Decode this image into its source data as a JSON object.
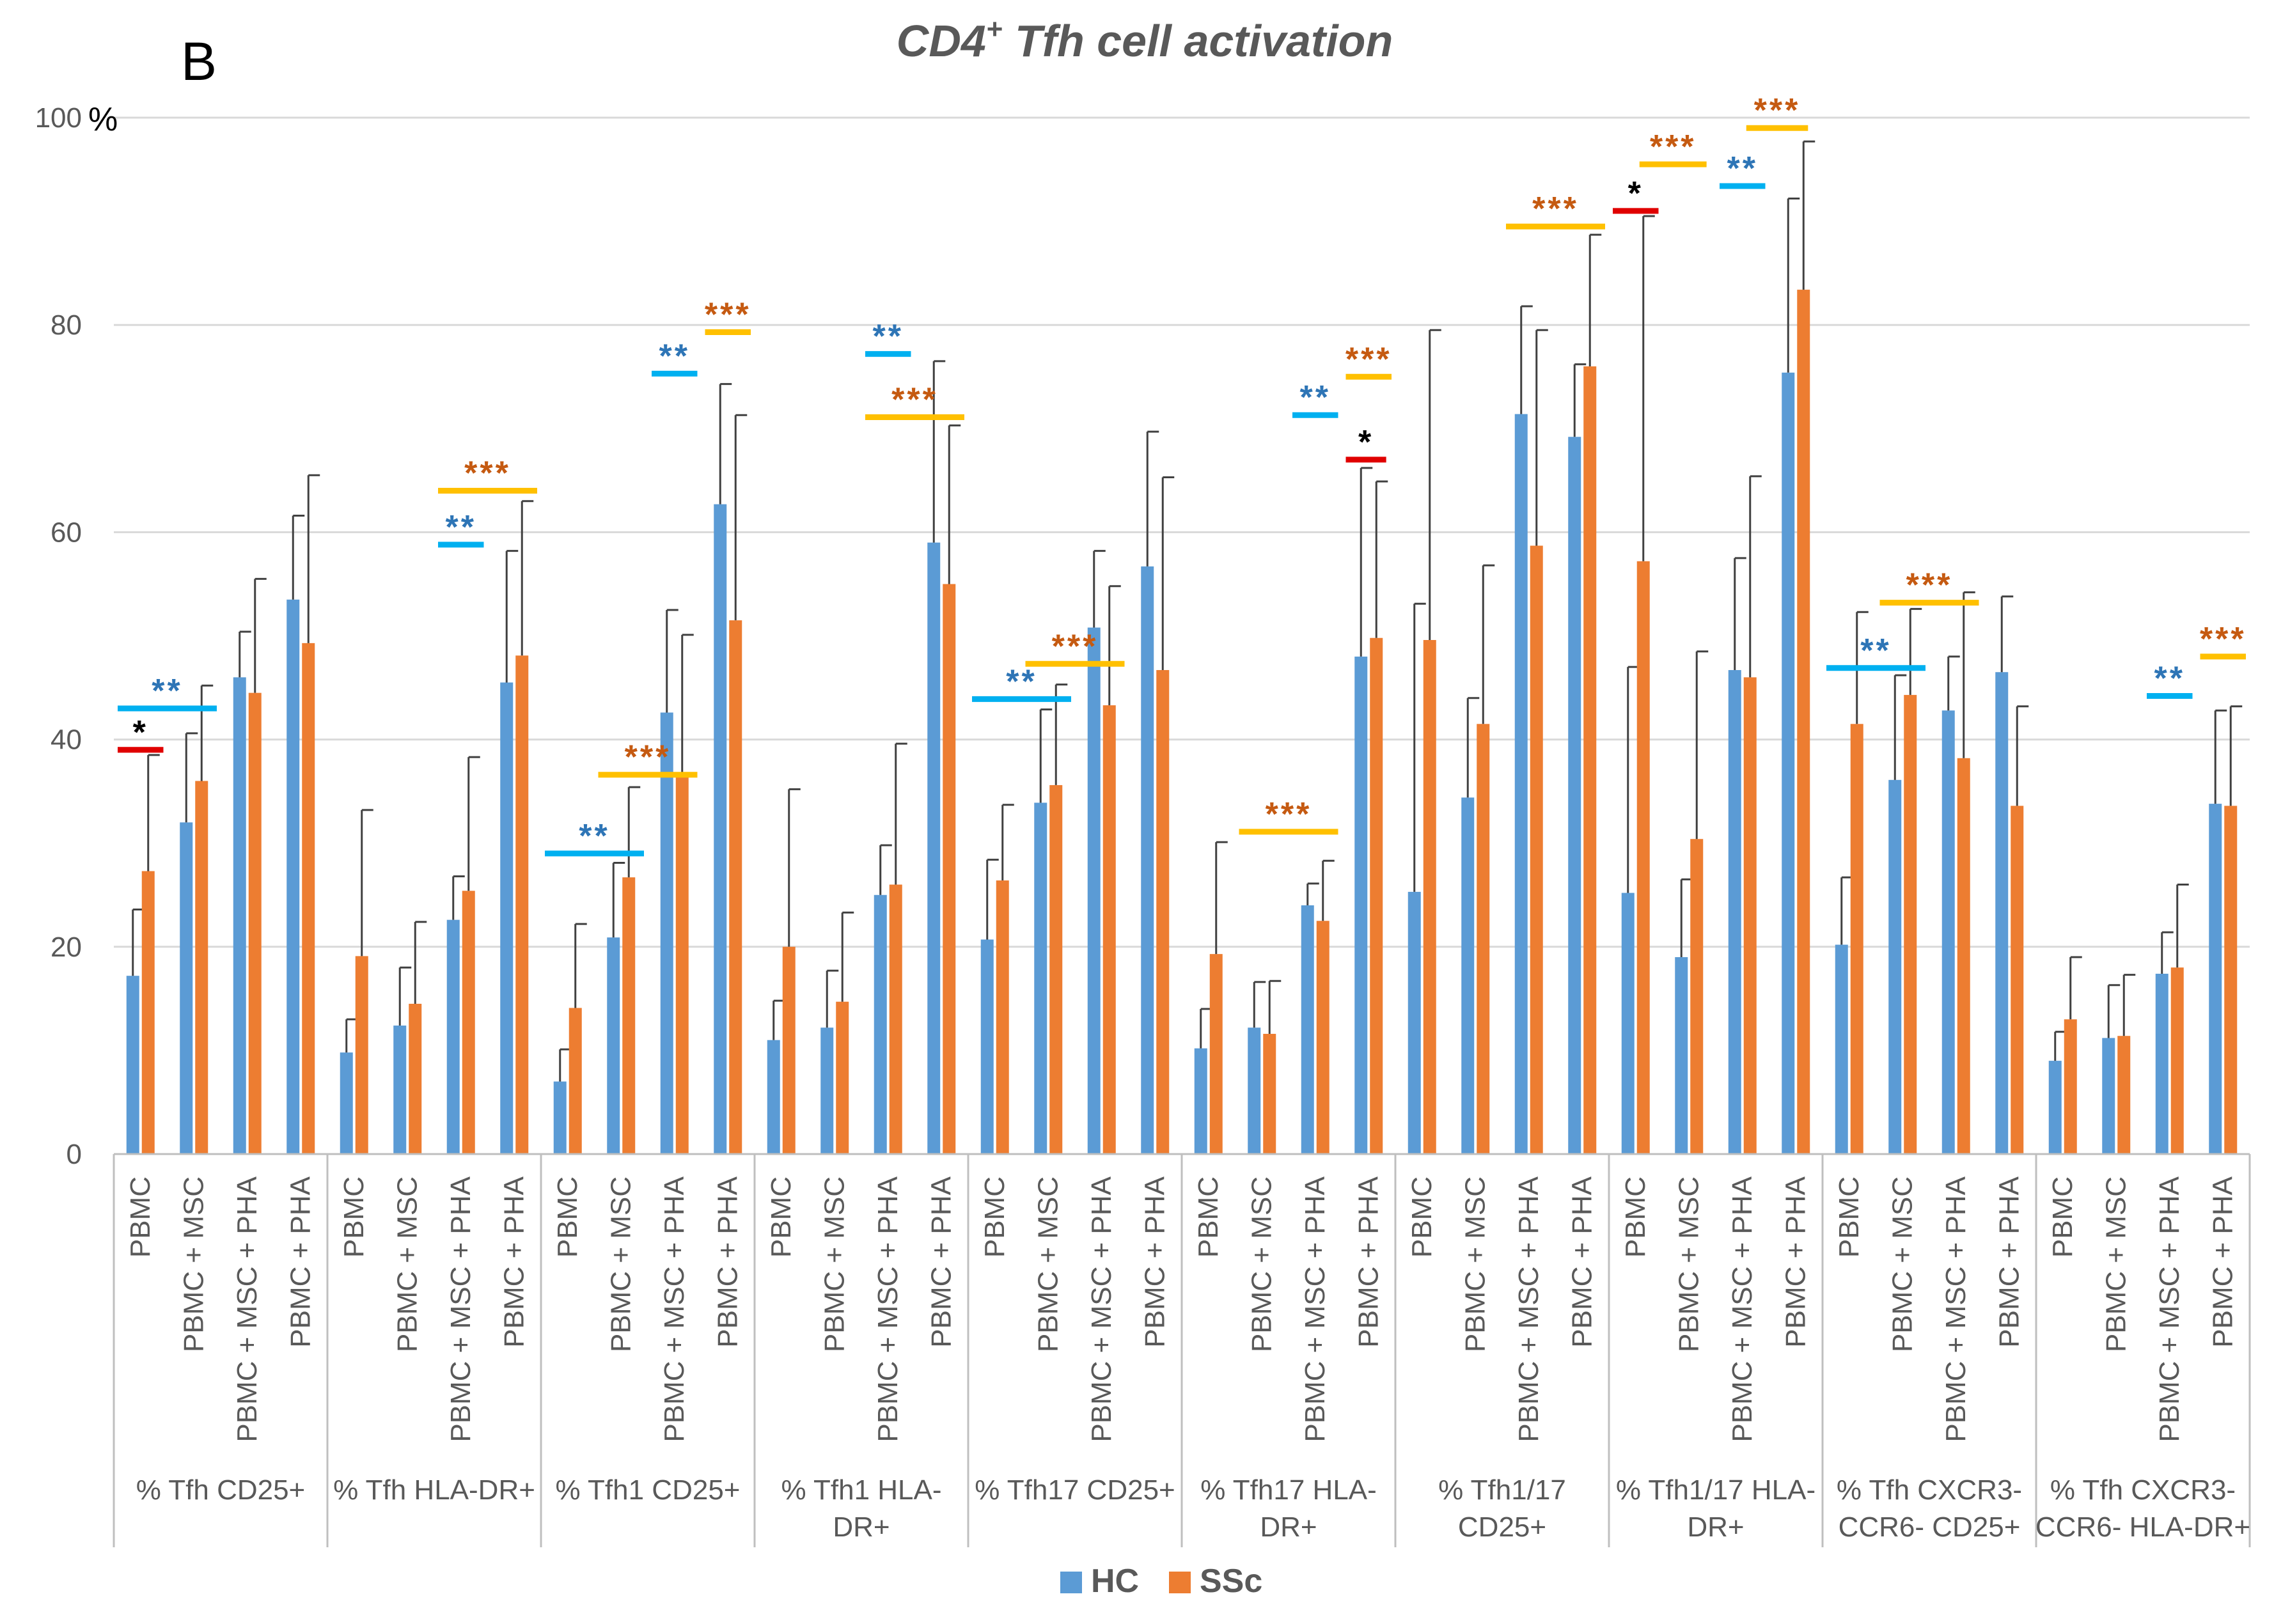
{
  "panel_label": "B",
  "chart_data": {
    "type": "bar",
    "title": "CD4",
    "title_superscript": "+",
    "title_rest": " Tfh cell activation",
    "y_unit_label": "%",
    "ylim": [
      0,
      100
    ],
    "yticks": [
      "0",
      "20",
      "40",
      "60",
      "80",
      "100"
    ],
    "grid": true,
    "legend_position": "bottom-center",
    "colors": {
      "HC": "#5b9bd5",
      "SSc": "#ed7d31",
      "axis": "#bfbfbf",
      "error": "#404040",
      "title": "#595959"
    },
    "star_colors": {
      "red": "#e00000",
      "blue": "#00b0f0",
      "yellow": "#ffc000",
      "blue_text": "#2e75b6",
      "yellow_text": "#c55a11",
      "red_text": "#000000"
    },
    "subcategories": [
      "PBMC",
      "PBMC + MSC",
      "PBMC + MSC + PHA",
      "PBMC + PHA"
    ],
    "groups": [
      {
        "label_lines": [
          "% Tfh CD25+"
        ]
      },
      {
        "label_lines": [
          "% Tfh HLA-DR+"
        ]
      },
      {
        "label_lines": [
          "% Tfh1 CD25+"
        ]
      },
      {
        "label_lines": [
          "% Tfh1 HLA-",
          "DR+"
        ]
      },
      {
        "label_lines": [
          "% Tfh17 CD25+"
        ]
      },
      {
        "label_lines": [
          "% Tfh17 HLA-",
          "DR+"
        ]
      },
      {
        "label_lines": [
          "% Tfh1/17",
          "CD25+"
        ]
      },
      {
        "label_lines": [
          "% Tfh1/17 HLA-",
          "DR+"
        ]
      },
      {
        "label_lines": [
          "% Tfh CXCR3-",
          "CCR6- CD25+"
        ]
      },
      {
        "label_lines": [
          "% Tfh CXCR3-",
          "CCR6- HLA-DR+"
        ]
      }
    ],
    "series": [
      {
        "name": "HC",
        "values": [
          17.2,
          32.0,
          46.0,
          53.5,
          9.8,
          12.4,
          22.6,
          45.5,
          7.0,
          20.9,
          42.6,
          62.7,
          11.0,
          12.2,
          25.0,
          59.0,
          20.7,
          33.9,
          50.8,
          56.7,
          10.2,
          12.2,
          24.0,
          48.0,
          25.3,
          34.4,
          71.4,
          69.2,
          25.2,
          19.0,
          46.7,
          75.4,
          20.2,
          36.1,
          42.8,
          46.5,
          9.0,
          11.2,
          17.4,
          33.8
        ],
        "errors": [
          6.4,
          8.6,
          4.4,
          8.1,
          3.2,
          5.6,
          4.2,
          12.7,
          3.1,
          7.2,
          9.9,
          11.6,
          3.8,
          5.5,
          4.8,
          17.5,
          7.7,
          9.0,
          7.4,
          13.0,
          3.8,
          4.4,
          2.1,
          18.2,
          27.8,
          9.6,
          10.4,
          7.0,
          21.8,
          7.5,
          10.8,
          16.8,
          6.5,
          10.1,
          5.2,
          7.3,
          2.8,
          5.1,
          4.0,
          9.0
        ]
      },
      {
        "name": "SSc",
        "values": [
          27.3,
          36.0,
          44.5,
          49.3,
          19.1,
          14.5,
          25.4,
          48.1,
          14.1,
          26.7,
          36.7,
          51.5,
          20.0,
          14.7,
          26.0,
          55.0,
          26.4,
          35.6,
          43.3,
          46.7,
          19.3,
          11.6,
          22.5,
          49.8,
          49.6,
          41.5,
          58.7,
          76.0,
          57.2,
          30.4,
          46.0,
          83.4,
          41.5,
          44.3,
          38.2,
          33.6,
          13.0,
          11.4,
          18.0,
          33.6
        ],
        "errors": [
          11.2,
          9.2,
          11.0,
          16.2,
          14.1,
          7.9,
          12.9,
          14.9,
          8.1,
          8.7,
          13.4,
          19.8,
          15.2,
          8.6,
          13.6,
          15.3,
          7.3,
          9.7,
          11.5,
          18.6,
          10.8,
          5.1,
          5.8,
          15.1,
          29.9,
          15.3,
          20.8,
          12.7,
          33.3,
          18.1,
          19.4,
          14.3,
          10.8,
          8.3,
          16.0,
          9.6,
          6.0,
          5.9,
          8.0,
          9.6
        ]
      }
    ],
    "significance": [
      {
        "group": 0,
        "pair": [
          0,
          1
        ],
        "y": 39.0,
        "color": "red",
        "stars": "*"
      },
      {
        "group": 0,
        "pair": [
          0,
          2
        ],
        "y": 43.0,
        "color": "blue",
        "stars": "**"
      },
      {
        "group": 1,
        "pair": [
          2,
          3
        ],
        "y": 58.8,
        "color": "blue",
        "stars": "**"
      },
      {
        "group": 1,
        "pair": [
          2,
          4
        ],
        "y": 64.0,
        "color": "yellow",
        "stars": "***"
      },
      {
        "group": 2,
        "pair": [
          0,
          2
        ],
        "y": 29.0,
        "color": "blue",
        "stars": "**"
      },
      {
        "group": 2,
        "pair": [
          1,
          3
        ],
        "y": 36.6,
        "color": "yellow",
        "stars": "***"
      },
      {
        "group": 2,
        "pair": [
          2,
          3
        ],
        "y": 75.3,
        "color": "blue",
        "stars": "**"
      },
      {
        "group": 2,
        "pair": [
          3,
          4
        ],
        "y": 79.3,
        "color": "yellow",
        "stars": "***"
      },
      {
        "group": 3,
        "pair": [
          2,
          3
        ],
        "y": 77.2,
        "color": "blue",
        "stars": "**"
      },
      {
        "group": 3,
        "pair": [
          2,
          4
        ],
        "y": 71.1,
        "color": "yellow",
        "stars": "***"
      },
      {
        "group": 4,
        "pair": [
          0,
          2
        ],
        "y": 43.9,
        "color": "blue",
        "stars": "**"
      },
      {
        "group": 4,
        "pair": [
          1,
          3
        ],
        "y": 47.3,
        "color": "yellow",
        "stars": "***"
      },
      {
        "group": 5,
        "pair": [
          1,
          3
        ],
        "y": 31.1,
        "color": "yellow",
        "stars": "***"
      },
      {
        "group": 5,
        "pair": [
          2,
          3
        ],
        "y": 71.3,
        "color": "blue",
        "stars": "**"
      },
      {
        "group": 5,
        "pair": [
          3,
          4
        ],
        "y": 75.0,
        "color": "yellow",
        "stars": "***"
      },
      {
        "group": 5,
        "pair": [
          3,
          3.9
        ],
        "y": 67.0,
        "color": "red",
        "stars": "*"
      },
      {
        "group": 6,
        "pair": [
          2,
          4
        ],
        "y": 89.5,
        "color": "yellow",
        "stars": "***"
      },
      {
        "group": 7,
        "pair": [
          0,
          1
        ],
        "y": 91.0,
        "color": "red",
        "stars": "*"
      },
      {
        "group": 7,
        "pair": [
          0.5,
          1.9
        ],
        "y": 95.5,
        "color": "yellow",
        "stars": "***"
      },
      {
        "group": 7,
        "pair": [
          2,
          3
        ],
        "y": 93.4,
        "color": "blue",
        "stars": "**"
      },
      {
        "group": 7,
        "pair": [
          2.5,
          3.8
        ],
        "y": 99.0,
        "color": "yellow",
        "stars": "***"
      },
      {
        "group": 8,
        "pair": [
          0,
          2
        ],
        "y": 46.9,
        "color": "blue",
        "stars": "**"
      },
      {
        "group": 8,
        "pair": [
          1,
          3
        ],
        "y": 53.2,
        "color": "yellow",
        "stars": "***"
      },
      {
        "group": 9,
        "pair": [
          2,
          3
        ],
        "y": 44.2,
        "color": "blue",
        "stars": "**"
      },
      {
        "group": 9,
        "pair": [
          3,
          4
        ],
        "y": 48.0,
        "color": "yellow",
        "stars": "***"
      }
    ]
  }
}
